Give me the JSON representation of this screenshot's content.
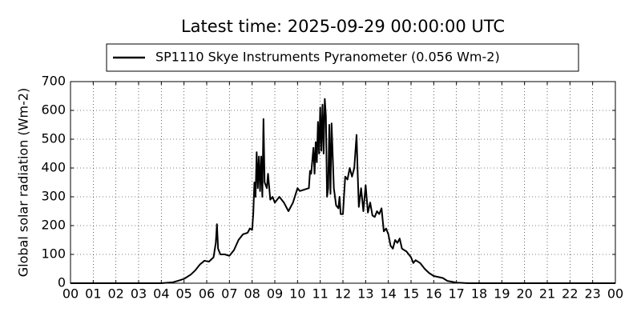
{
  "chart_data": {
    "type": "line",
    "title": "Latest time: 2025-09-29 00:00:00 UTC",
    "ylabel": "Global solar radiation (Wm-2)",
    "xlim": [
      0,
      24
    ],
    "ylim": [
      0,
      700
    ],
    "yticks": [
      0,
      100,
      200,
      300,
      400,
      500,
      600,
      700
    ],
    "xticks": [
      {
        "value": 0,
        "label": "00"
      },
      {
        "value": 1,
        "label": "01"
      },
      {
        "value": 2,
        "label": "02"
      },
      {
        "value": 3,
        "label": "03"
      },
      {
        "value": 4,
        "label": "04"
      },
      {
        "value": 5,
        "label": "05"
      },
      {
        "value": 6,
        "label": "06"
      },
      {
        "value": 7,
        "label": "07"
      },
      {
        "value": 8,
        "label": "08"
      },
      {
        "value": 9,
        "label": "09"
      },
      10,
      11,
      12,
      13,
      14,
      15,
      16,
      17,
      18,
      19,
      20,
      21,
      22,
      23,
      {
        "value": 24,
        "label": "00"
      }
    ],
    "grid": true,
    "x": [
      0,
      4.0,
      4.5,
      4.8,
      5.0,
      5.3,
      5.5,
      5.7,
      5.9,
      6.1,
      6.3,
      6.4,
      6.45,
      6.5,
      6.6,
      6.8,
      7.0,
      7.2,
      7.4,
      7.6,
      7.8,
      7.9,
      8.0,
      8.05,
      8.1,
      8.15,
      8.2,
      8.25,
      8.3,
      8.35,
      8.4,
      8.45,
      8.5,
      8.55,
      8.65,
      8.7,
      8.8,
      8.9,
      9.0,
      9.2,
      9.4,
      9.6,
      9.8,
      10.0,
      10.1,
      10.3,
      10.5,
      10.55,
      10.6,
      10.7,
      10.75,
      10.8,
      10.85,
      10.9,
      10.95,
      11.0,
      11.05,
      11.1,
      11.15,
      11.2,
      11.25,
      11.3,
      11.35,
      11.4,
      11.45,
      11.5,
      11.6,
      11.7,
      11.8,
      11.85,
      11.9,
      12.0,
      12.1,
      12.2,
      12.3,
      12.4,
      12.5,
      12.6,
      12.65,
      12.7,
      12.8,
      12.9,
      13.0,
      13.1,
      13.2,
      13.3,
      13.4,
      13.5,
      13.6,
      13.7,
      13.8,
      13.9,
      14.0,
      14.1,
      14.2,
      14.3,
      14.4,
      14.5,
      14.6,
      14.8,
      15.0,
      15.1,
      15.2,
      15.4,
      15.6,
      15.8,
      16.0,
      16.4,
      16.6,
      17.0,
      17.5,
      24
    ],
    "series": [
      {
        "name": "SP1110 Skye Instruments Pyranometer (0.056 Wm-2)",
        "color": "#000000",
        "values": [
          0,
          0,
          3,
          10,
          15,
          30,
          45,
          65,
          78,
          75,
          90,
          140,
          205,
          120,
          100,
          100,
          95,
          115,
          150,
          170,
          175,
          190,
          185,
          240,
          350,
          300,
          455,
          330,
          440,
          320,
          440,
          300,
          570,
          350,
          330,
          380,
          290,
          300,
          280,
          300,
          280,
          250,
          280,
          330,
          320,
          325,
          330,
          390,
          380,
          470,
          380,
          490,
          420,
          560,
          450,
          610,
          460,
          620,
          450,
          640,
          580,
          300,
          330,
          550,
          310,
          555,
          330,
          270,
          260,
          300,
          240,
          240,
          370,
          360,
          400,
          370,
          400,
          515,
          380,
          265,
          330,
          250,
          340,
          245,
          280,
          235,
          230,
          250,
          240,
          260,
          180,
          190,
          170,
          130,
          120,
          150,
          140,
          155,
          120,
          110,
          90,
          70,
          80,
          70,
          50,
          35,
          25,
          18,
          8,
          2,
          0,
          0
        ]
      }
    ]
  }
}
